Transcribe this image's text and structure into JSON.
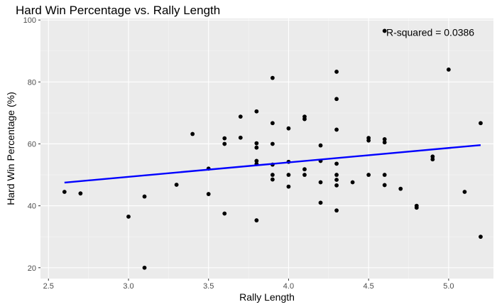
{
  "chart_data": {
    "type": "scatter",
    "title": "Hard Win Percentage vs. Rally Length",
    "xlabel": "Rally Length",
    "ylabel": "Hard Win Percentage (%)",
    "xlim": [
      2.45,
      5.28
    ],
    "ylim": [
      16.5,
      100.5
    ],
    "xticks": [
      "2.5",
      "3.0",
      "3.5",
      "4.0",
      "4.5",
      "5.0"
    ],
    "yticks": [
      "20",
      "40",
      "60",
      "80",
      "100"
    ],
    "grid": true,
    "annotation": "R-squared = 0.0386",
    "trendline": {
      "x": [
        2.6,
        5.2
      ],
      "y": [
        47.5,
        59.6
      ],
      "color": "#0000ff"
    },
    "points": [
      {
        "x": 2.6,
        "y": 44.5
      },
      {
        "x": 2.7,
        "y": 44.0
      },
      {
        "x": 3.0,
        "y": 36.5
      },
      {
        "x": 3.1,
        "y": 43.0
      },
      {
        "x": 3.1,
        "y": 20.0
      },
      {
        "x": 3.3,
        "y": 46.8
      },
      {
        "x": 3.4,
        "y": 63.2
      },
      {
        "x": 3.5,
        "y": 52.0
      },
      {
        "x": 3.5,
        "y": 43.8
      },
      {
        "x": 3.6,
        "y": 61.8
      },
      {
        "x": 3.6,
        "y": 60.0
      },
      {
        "x": 3.6,
        "y": 37.5
      },
      {
        "x": 3.7,
        "y": 68.8
      },
      {
        "x": 3.7,
        "y": 62.0
      },
      {
        "x": 3.8,
        "y": 70.5
      },
      {
        "x": 3.8,
        "y": 60.2
      },
      {
        "x": 3.8,
        "y": 58.8
      },
      {
        "x": 3.8,
        "y": 54.5
      },
      {
        "x": 3.8,
        "y": 53.5
      },
      {
        "x": 3.8,
        "y": 35.3
      },
      {
        "x": 3.9,
        "y": 81.3
      },
      {
        "x": 3.9,
        "y": 66.7
      },
      {
        "x": 3.9,
        "y": 60.0
      },
      {
        "x": 3.9,
        "y": 53.3
      },
      {
        "x": 3.9,
        "y": 50.0
      },
      {
        "x": 3.9,
        "y": 48.5
      },
      {
        "x": 4.0,
        "y": 65.0
      },
      {
        "x": 4.0,
        "y": 54.2
      },
      {
        "x": 4.0,
        "y": 50.0
      },
      {
        "x": 4.0,
        "y": 46.2
      },
      {
        "x": 4.1,
        "y": 68.8
      },
      {
        "x": 4.1,
        "y": 68.0
      },
      {
        "x": 4.1,
        "y": 51.8
      },
      {
        "x": 4.1,
        "y": 50.0
      },
      {
        "x": 4.2,
        "y": 59.5
      },
      {
        "x": 4.2,
        "y": 54.5
      },
      {
        "x": 4.2,
        "y": 47.6
      },
      {
        "x": 4.2,
        "y": 41.0
      },
      {
        "x": 4.3,
        "y": 83.3
      },
      {
        "x": 4.3,
        "y": 74.5
      },
      {
        "x": 4.3,
        "y": 64.6
      },
      {
        "x": 4.3,
        "y": 53.6
      },
      {
        "x": 4.3,
        "y": 50.0
      },
      {
        "x": 4.3,
        "y": 48.4
      },
      {
        "x": 4.3,
        "y": 46.6
      },
      {
        "x": 4.3,
        "y": 38.5
      },
      {
        "x": 4.4,
        "y": 47.6
      },
      {
        "x": 4.5,
        "y": 61.9
      },
      {
        "x": 4.5,
        "y": 61.1
      },
      {
        "x": 4.5,
        "y": 50.0
      },
      {
        "x": 4.6,
        "y": 96.5
      },
      {
        "x": 4.6,
        "y": 61.5
      },
      {
        "x": 4.6,
        "y": 60.5
      },
      {
        "x": 4.6,
        "y": 50.0
      },
      {
        "x": 4.6,
        "y": 46.7
      },
      {
        "x": 4.7,
        "y": 45.5
      },
      {
        "x": 4.8,
        "y": 40.0
      },
      {
        "x": 4.8,
        "y": 39.4
      },
      {
        "x": 4.9,
        "y": 55.9
      },
      {
        "x": 4.9,
        "y": 55.0
      },
      {
        "x": 5.0,
        "y": 84.0
      },
      {
        "x": 5.1,
        "y": 44.5
      },
      {
        "x": 5.2,
        "y": 66.7
      },
      {
        "x": 5.2,
        "y": 30.0
      }
    ]
  }
}
